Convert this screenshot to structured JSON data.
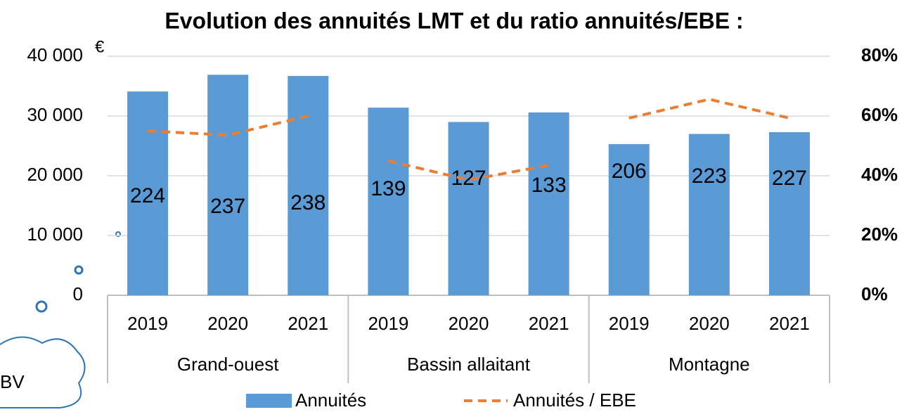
{
  "chart_data": {
    "type": "bar_line",
    "title": "Evolution des annuités LMT et du ratio annuités/EBE :",
    "y_unit": "€",
    "callout": "BV",
    "groups": [
      {
        "name": "Grand-ouest",
        "categories": [
          "2019",
          "2020",
          "2021"
        ]
      },
      {
        "name": "Bassin allaitant",
        "categories": [
          "2019",
          "2020",
          "2021"
        ]
      },
      {
        "name": "Montagne",
        "categories": [
          "2019",
          "2020",
          "2021"
        ]
      }
    ],
    "series": [
      {
        "name": "Annuités",
        "type": "bar",
        "color": "#5b9bd5",
        "values": [
          [
            34100,
            36900,
            36700
          ],
          [
            31400,
            29000,
            30600
          ],
          [
            25300,
            27000,
            27300
          ]
        ],
        "value_labels": [
          [
            "224",
            "237",
            "238"
          ],
          [
            "139",
            "127",
            "133"
          ],
          [
            "206",
            "223",
            "227"
          ]
        ]
      },
      {
        "name": "Annuités / EBE",
        "type": "line",
        "axis": "y2",
        "color": "#ed7d31",
        "dashed": true,
        "values": [
          [
            55,
            53.6,
            60
          ],
          [
            45,
            38.6,
            43.5
          ],
          [
            59.3,
            65.6,
            59.3
          ]
        ]
      }
    ],
    "ylim": [
      0,
      40000
    ],
    "yticks": [
      0,
      {
        "value": 10000,
        "label": "10 000"
      },
      {
        "value": 20000,
        "label": "20 000"
      },
      {
        "value": 30000,
        "label": "30 000"
      },
      {
        "value": 40000,
        "label": "40 000"
      }
    ],
    "y2lim": [
      0,
      80
    ],
    "y2ticks": [
      {
        "value": 0,
        "label": "0%"
      },
      {
        "value": 20,
        "label": "20%"
      },
      {
        "value": 40,
        "label": "40%"
      },
      {
        "value": 60,
        "label": "60%"
      },
      {
        "value": 80,
        "label": "80%"
      }
    ],
    "grid": true,
    "legend": "bottom"
  }
}
